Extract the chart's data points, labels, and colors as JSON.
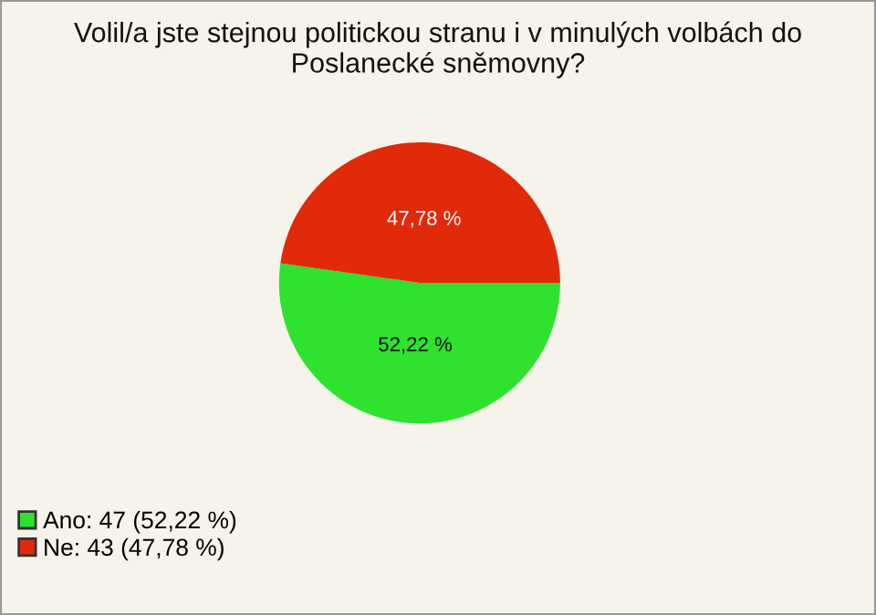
{
  "chart_data": {
    "type": "pie",
    "title": "Volil/a jste stejnou politickou stranu i v minulých volbách do\nPoslanecké sněmovny?",
    "categories": [
      "Ano: 47 (52,22 %)",
      "Ne: 43 (47,78 %)"
    ],
    "values": [
      52.22,
      47.78
    ],
    "value_labels": [
      "52,22 %",
      "47,78 %"
    ],
    "colors": [
      "#2ee22e",
      "#e02a0a"
    ],
    "legend": "bottom left"
  }
}
